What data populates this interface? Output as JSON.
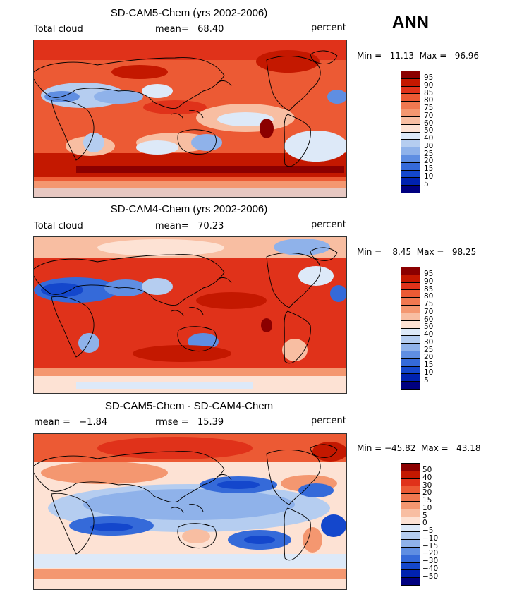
{
  "season": "ANN",
  "panels": [
    {
      "title": "SD-CAM5-Chem (yrs 2002-2006)",
      "left_label": "Total cloud",
      "mid_label": "mean=   68.40",
      "right_label": "percent",
      "stats": "Min =   11.13  Max =   96.96",
      "colorbar_labels": [
        "95",
        "90",
        "85",
        "80",
        "75",
        "70",
        "60",
        "50",
        "40",
        "30",
        "25",
        "20",
        "15",
        "10",
        "5"
      ],
      "colorbar_colors": [
        "#8b0000",
        "#c41800",
        "#e0321a",
        "#ec5a34",
        "#f07850",
        "#f49770",
        "#f8bea2",
        "#fde2d4",
        "#dde9f8",
        "#b5cdf0",
        "#8fb2ea",
        "#5f8ee2",
        "#356ad9",
        "#1447cc",
        "#0022b0",
        "#000080"
      ],
      "field_mean": 68.4,
      "field_min": 11.13,
      "field_max": 96.96
    },
    {
      "title": "SD-CAM4-Chem (yrs 2002-2006)",
      "left_label": "Total cloud",
      "mid_label": "mean=   70.23",
      "right_label": "percent",
      "stats": "Min =    8.45  Max =   98.25",
      "colorbar_labels": [
        "95",
        "90",
        "85",
        "80",
        "75",
        "70",
        "60",
        "50",
        "40",
        "30",
        "25",
        "20",
        "15",
        "10",
        "5"
      ],
      "colorbar_colors": [
        "#8b0000",
        "#c41800",
        "#e0321a",
        "#ec5a34",
        "#f07850",
        "#f49770",
        "#f8bea2",
        "#fde2d4",
        "#dde9f8",
        "#b5cdf0",
        "#8fb2ea",
        "#5f8ee2",
        "#356ad9",
        "#1447cc",
        "#0022b0",
        "#000080"
      ],
      "field_mean": 70.23,
      "field_min": 8.45,
      "field_max": 98.25
    },
    {
      "title": "SD-CAM5-Chem - SD-CAM4-Chem",
      "left_label": "mean =   −1.84",
      "mid_label": "rmse =   15.39",
      "right_label": "percent",
      "stats": "Min = −45.82  Max =   43.18",
      "colorbar_labels": [
        "50",
        "40",
        "30",
        "20",
        "15",
        "10",
        "5",
        "0",
        "−5",
        "−10",
        "−15",
        "−20",
        "−30",
        "−40",
        "−50"
      ],
      "colorbar_colors": [
        "#8b0000",
        "#c41800",
        "#e0321a",
        "#ec5a34",
        "#f07850",
        "#f49770",
        "#f8bea2",
        "#fde2d4",
        "#dde9f8",
        "#b5cdf0",
        "#8fb2ea",
        "#5f8ee2",
        "#356ad9",
        "#1447cc",
        "#0022b0",
        "#000080"
      ],
      "field_mean": -1.84,
      "field_rmse": 15.39,
      "field_min": -45.82,
      "field_max": 43.18
    }
  ]
}
